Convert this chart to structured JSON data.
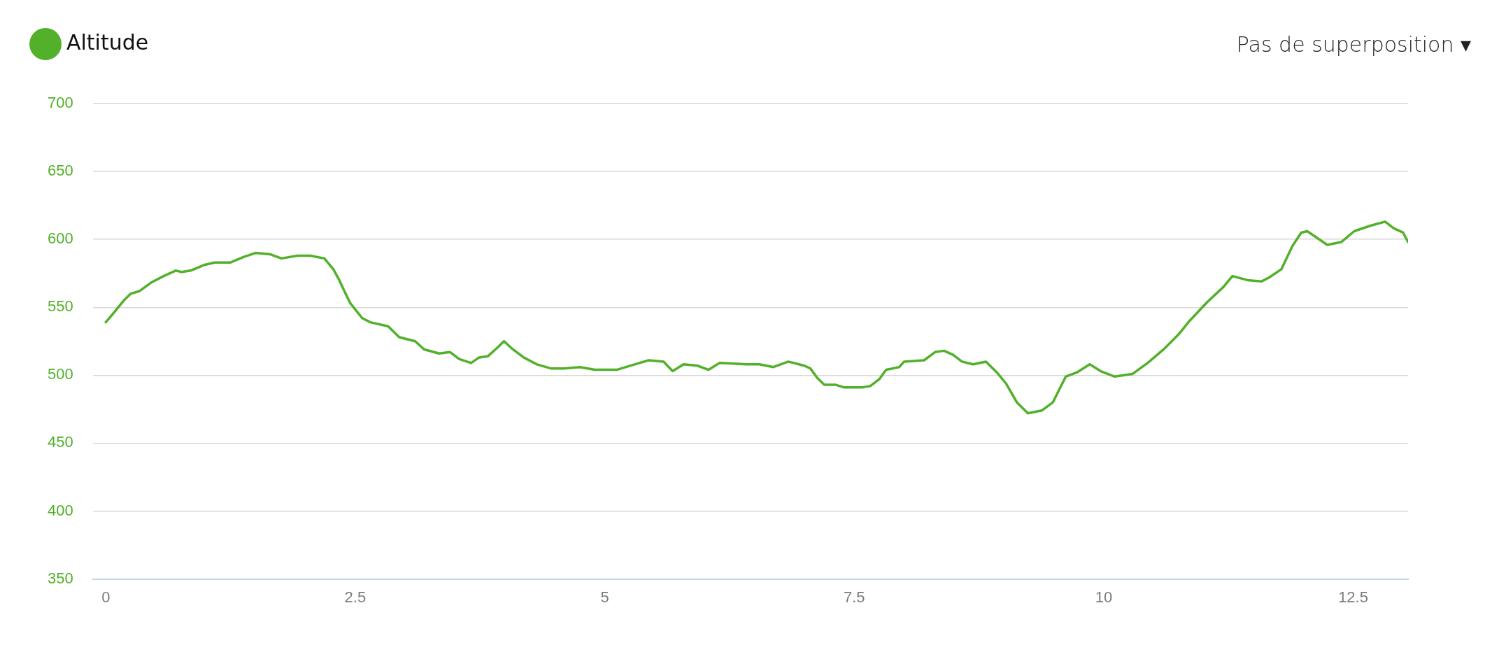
{
  "chart_data": {
    "type": "line",
    "annotations": [
      "Pas de superposition ▾"
    ],
    "legend": "top left",
    "grid": "y",
    "marker": "none",
    "line_style": "solid",
    "xlim": [
      -0.13,
      13.05
    ],
    "xticks": [
      0,
      2.5,
      5,
      7.5,
      10,
      12.5
    ],
    "ylim": [
      350,
      700
    ],
    "yticks": [
      350,
      400,
      450,
      500,
      550,
      600,
      650,
      700
    ],
    "series": [
      {
        "name": "Altitude",
        "color": "#52b02a",
        "x": [
          0,
          0.07,
          0.18,
          0.25,
          0.34,
          0.45,
          0.58,
          0.7,
          0.76,
          0.85,
          0.98,
          1.09,
          1.25,
          1.38,
          1.5,
          1.65,
          1.76,
          1.92,
          2.05,
          2.19,
          2.28,
          2.34,
          2.39,
          2.45,
          2.57,
          2.65,
          2.83,
          2.94,
          3.1,
          3.19,
          3.34,
          3.45,
          3.54,
          3.66,
          3.74,
          3.83,
          3.92,
          3.99,
          4.08,
          4.19,
          4.32,
          4.46,
          4.59,
          4.75,
          4.9,
          5.12,
          5.3,
          5.44,
          5.59,
          5.68,
          5.79,
          5.93,
          6.04,
          6.15,
          6.42,
          6.55,
          6.69,
          6.84,
          7.0,
          7.06,
          7.13,
          7.2,
          7.31,
          7.4,
          7.58,
          7.66,
          7.75,
          7.82,
          7.95,
          8.0,
          8.2,
          8.31,
          8.4,
          8.49,
          8.58,
          8.69,
          8.82,
          8.93,
          9.02,
          9.13,
          9.24,
          9.38,
          9.49,
          9.62,
          9.73,
          9.86,
          9.97,
          10.11,
          10.29,
          10.44,
          10.6,
          10.75,
          10.86,
          11.04,
          11.2,
          11.29,
          11.44,
          11.58,
          11.66,
          11.78,
          11.89,
          11.98,
          12.04,
          12.24,
          12.38,
          12.51,
          12.67,
          12.82,
          12.91,
          13.0,
          13.05
        ],
        "values": [
          539,
          545,
          555,
          560,
          562,
          568,
          573,
          577,
          576,
          577,
          581,
          583,
          583,
          587,
          590,
          589,
          586,
          588,
          588,
          586,
          578,
          570,
          562,
          553,
          542,
          539,
          536,
          528,
          525,
          519,
          516,
          517,
          512,
          509,
          513,
          514,
          520,
          525,
          519,
          513,
          508,
          505,
          505,
          506,
          504,
          504,
          508,
          511,
          510,
          503,
          508,
          507,
          504,
          509,
          508,
          508,
          506,
          510,
          507,
          505,
          498,
          493,
          493,
          491,
          491,
          492,
          497,
          504,
          506,
          510,
          511,
          517,
          518,
          515,
          510,
          508,
          510,
          502,
          494,
          480,
          472,
          474,
          480,
          499,
          502,
          508,
          503,
          499,
          501,
          509,
          519,
          530,
          540,
          554,
          565,
          573,
          570,
          569,
          572,
          578,
          595,
          605,
          606,
          596,
          598,
          606,
          610,
          613,
          608,
          605,
          598
        ]
      }
    ]
  }
}
